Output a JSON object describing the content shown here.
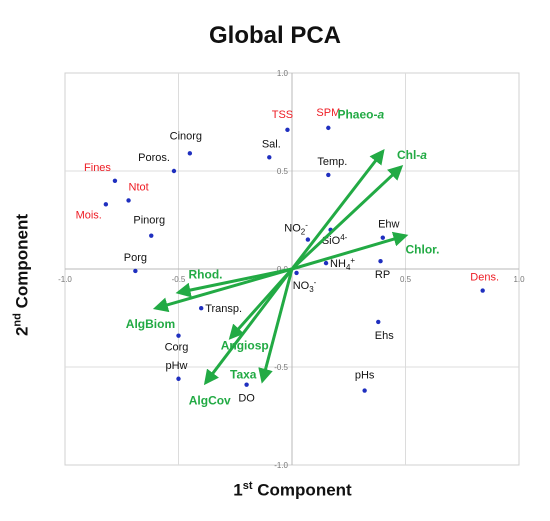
{
  "chart_data": {
    "type": "scatter",
    "title": "Global PCA",
    "xlabel_main": "1",
    "xlabel_sup": "st",
    "xlabel_rest": " Component",
    "ylabel_main": "2",
    "ylabel_sup": "nd",
    "ylabel_rest": " Component",
    "xlim": [
      -1.0,
      1.0
    ],
    "ylim": [
      -1.0,
      1.0
    ],
    "x_ticks": [
      "-1.0",
      "-0.5",
      "0.0",
      "0.5",
      "1.0"
    ],
    "y_ticks": [
      "1.0",
      "0.5",
      "0.0",
      "-0.5",
      "-1.0"
    ],
    "grid": true,
    "colors": {
      "point": "#1f2fbf",
      "vector": "#22aa44",
      "black_label": "#111111",
      "red_label": "#ee1c24"
    },
    "points": [
      {
        "label": "TSS",
        "x": -0.02,
        "y": 0.71,
        "color": "red"
      },
      {
        "label": "SPM",
        "x": 0.16,
        "y": 0.72,
        "color": "red"
      },
      {
        "label": "Cinorg",
        "x": -0.45,
        "y": 0.59,
        "color": "black"
      },
      {
        "label": "Poros.",
        "x": -0.52,
        "y": 0.5,
        "color": "black"
      },
      {
        "label": "Sal.",
        "x": -0.1,
        "y": 0.57,
        "color": "black"
      },
      {
        "label": "Temp.",
        "x": 0.16,
        "y": 0.48,
        "color": "black"
      },
      {
        "label": "Fines",
        "x": -0.78,
        "y": 0.45,
        "color": "red"
      },
      {
        "label": "Ntot",
        "x": -0.72,
        "y": 0.35,
        "color": "red"
      },
      {
        "label": "Mois.",
        "x": -0.82,
        "y": 0.33,
        "color": "red"
      },
      {
        "label": "Pinorg",
        "x": -0.62,
        "y": 0.17,
        "color": "black"
      },
      {
        "label": "Porg",
        "x": -0.69,
        "y": -0.01,
        "color": "black"
      },
      {
        "label": "Ehw",
        "x": 0.4,
        "y": 0.16,
        "color": "black"
      },
      {
        "label": "NO2-",
        "x": 0.07,
        "y": 0.15,
        "color": "black",
        "sup": "-"
      },
      {
        "label": "SiO44-",
        "x": 0.17,
        "y": 0.2,
        "color": "black",
        "sup": "4-"
      },
      {
        "label": "NH4+",
        "x": 0.15,
        "y": 0.03,
        "color": "black",
        "sub": "4",
        "sup": "+"
      },
      {
        "label": "NO3-",
        "x": 0.02,
        "y": -0.02,
        "color": "black",
        "sub": "3",
        "sup": "-"
      },
      {
        "label": "RP",
        "x": 0.39,
        "y": 0.04,
        "color": "black"
      },
      {
        "label": "Dens.",
        "x": 0.84,
        "y": -0.11,
        "color": "red"
      },
      {
        "label": "Transp.",
        "x": -0.4,
        "y": -0.2,
        "color": "black"
      },
      {
        "label": "Corg",
        "x": -0.5,
        "y": -0.34,
        "color": "black"
      },
      {
        "label": "Ehs",
        "x": 0.38,
        "y": -0.27,
        "color": "black"
      },
      {
        "label": "pHw",
        "x": -0.5,
        "y": -0.56,
        "color": "black"
      },
      {
        "label": "DO",
        "x": -0.2,
        "y": -0.59,
        "color": "black"
      },
      {
        "label": "pHs",
        "x": 0.32,
        "y": -0.62,
        "color": "black"
      }
    ],
    "vectors": [
      {
        "label": "Phaeo-a",
        "base": "Phaeo-",
        "ital": "a",
        "x": 0.4,
        "y": 0.6
      },
      {
        "label": "Chl-a",
        "base": "Chl-",
        "ital": "a",
        "x": 0.48,
        "y": 0.52
      },
      {
        "label": "Chlor.",
        "base": "Chlor.",
        "ital": "",
        "x": 0.5,
        "y": 0.17
      },
      {
        "label": "Rhod.",
        "base": "Rhod.",
        "ital": "",
        "x": -0.5,
        "y": -0.12
      },
      {
        "label": "AlgBiom",
        "base": "AlgBiom",
        "ital": "",
        "x": -0.6,
        "y": -0.2
      },
      {
        "label": "Angiosp.",
        "base": "Angiosp.",
        "ital": "",
        "x": -0.27,
        "y": -0.35
      },
      {
        "label": "Taxa",
        "base": "Taxa",
        "ital": "",
        "x": -0.13,
        "y": -0.57
      },
      {
        "label": "AlgCov",
        "base": "AlgCov",
        "ital": "",
        "x": -0.38,
        "y": -0.58
      }
    ]
  }
}
